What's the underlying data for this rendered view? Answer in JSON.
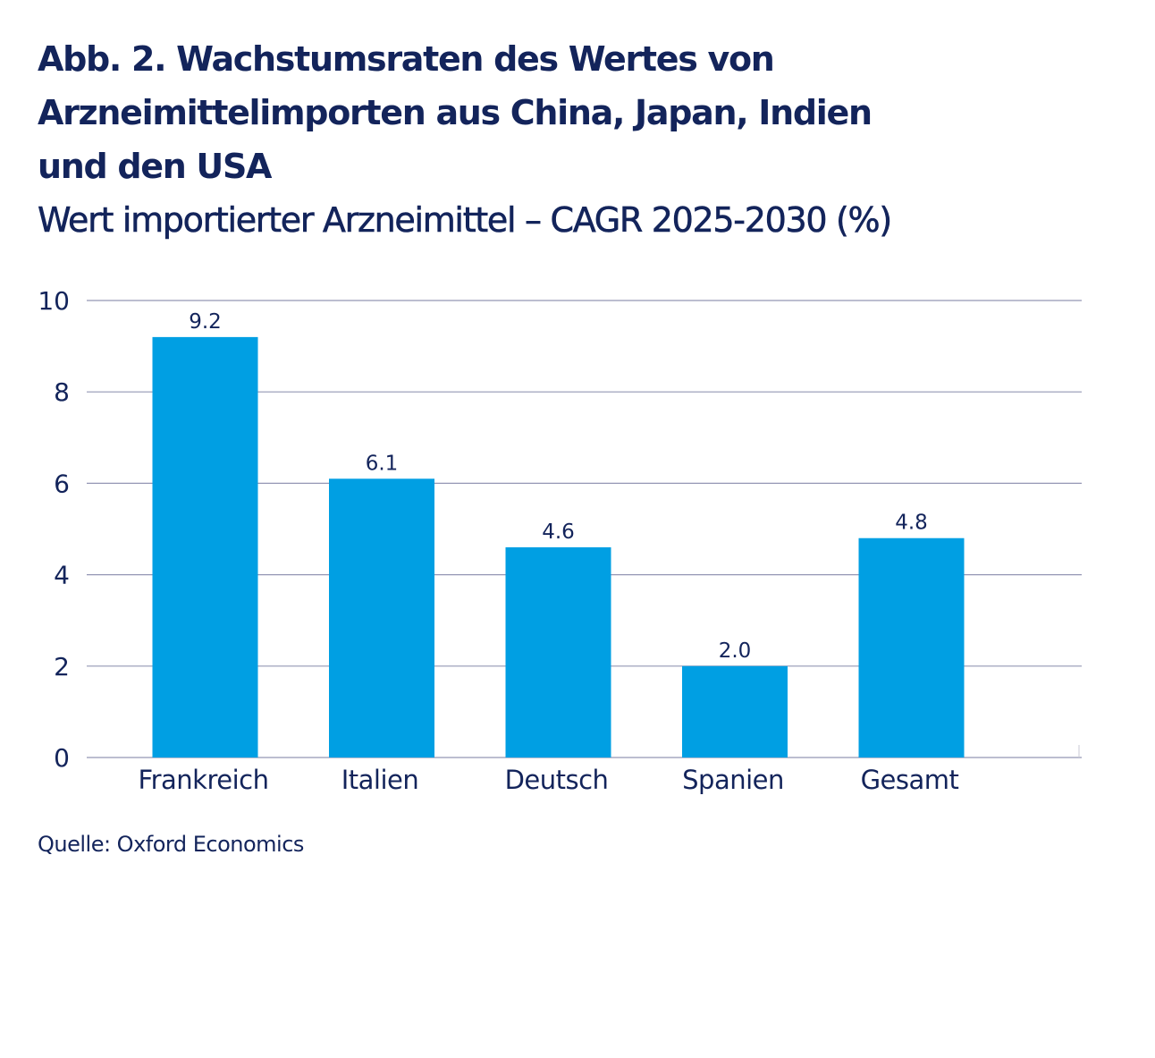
{
  "chart_data": {
    "type": "bar",
    "title": "Abb. 2. Wachstumsraten des Wertes von Arzneimittelimporten aus China, Japan, Indien und den USA",
    "title_lines": [
      "Abb. 2. Wachstumsraten des Wertes von",
      "Arzneimittelimporten aus China, Japan, Indien",
      "und den USA"
    ],
    "subtitle": "Wert importierter Arzneimittel – CAGR 2025-2030 (%)",
    "categories": [
      "Frankreich",
      "Italien",
      "Deutsch",
      "Spanien",
      "Gesamt"
    ],
    "values": [
      9.2,
      6.1,
      4.6,
      2.0,
      4.8
    ],
    "data_labels": [
      "9.2",
      "6.1",
      "4.6",
      "2.0",
      "4.8"
    ],
    "xlabel": "",
    "ylabel": "",
    "ylim": [
      0,
      10
    ],
    "yticks": [
      0,
      2,
      4,
      6,
      8,
      10
    ],
    "grid": true,
    "legend": "none",
    "colors": {
      "bar": "#009fe3",
      "text": "#13245b",
      "grid": "#9496b4"
    },
    "source": "Quelle: Oxford Economics"
  }
}
